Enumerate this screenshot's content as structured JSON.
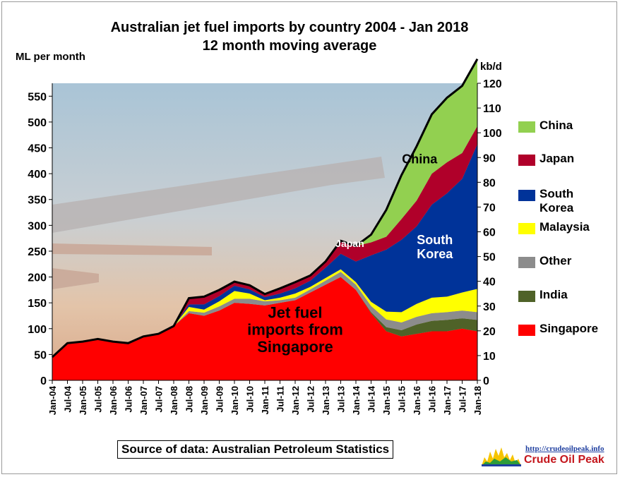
{
  "chart_data": {
    "type": "area",
    "stacked": true,
    "title": "Australian  jet fuel imports  by country  2004 - Jan 2018",
    "subtitle": "12 month  moving average",
    "ylabel": "ML per month",
    "ylabel_right": "kb/d",
    "ylim": [
      0,
      575
    ],
    "yticks": [
      0,
      50,
      100,
      150,
      200,
      250,
      300,
      350,
      400,
      450,
      500,
      550
    ],
    "ylim_right": [
      0,
      120
    ],
    "yticks_right": [
      0,
      10,
      20,
      30,
      40,
      50,
      60,
      70,
      80,
      90,
      100,
      110,
      120
    ],
    "x_tick_labels": [
      "Jan-04",
      "Jul-04",
      "Jan-05",
      "Jul-05",
      "Jan-06",
      "Jul-06",
      "Jan-07",
      "Jul-07",
      "Jan-08",
      "Jul-08",
      "Jan-09",
      "Jul-09",
      "Jan-10",
      "Jul-10",
      "Jan-11",
      "Jul-11",
      "Jan-12",
      "Jul-12",
      "Jan-13",
      "Jul-13",
      "Jan-14",
      "Jul-14",
      "Jan-15",
      "Jul-15",
      "Jan-16",
      "Jul-16",
      "Jan-17",
      "Jul-17",
      "Jan-18"
    ],
    "x": [
      2004.0,
      2004.5,
      2005.0,
      2005.5,
      2006.0,
      2006.5,
      2007.0,
      2007.5,
      2008.0,
      2008.5,
      2009.0,
      2009.5,
      2010.0,
      2010.5,
      2011.0,
      2011.5,
      2012.0,
      2012.5,
      2013.0,
      2013.5,
      2014.0,
      2014.5,
      2015.0,
      2015.5,
      2016.0,
      2016.5,
      2017.0,
      2017.5,
      2018.0
    ],
    "series": [
      {
        "name": "Singapore",
        "color": "#ff0000",
        "values": [
          45,
          72,
          75,
          80,
          75,
          72,
          85,
          90,
          105,
          130,
          125,
          135,
          150,
          148,
          145,
          150,
          155,
          170,
          185,
          200,
          175,
          130,
          95,
          85,
          90,
          95,
          95,
          100,
          95
        ]
      },
      {
        "name": "India",
        "color": "#4f6228",
        "values": [
          0,
          0,
          0,
          0,
          0,
          0,
          0,
          0,
          0,
          0,
          0,
          0,
          0,
          0,
          0,
          0,
          0,
          0,
          0,
          0,
          0,
          2,
          8,
          12,
          18,
          20,
          22,
          20,
          22
        ]
      },
      {
        "name": "Other",
        "color": "#8c8c8c",
        "values": [
          0,
          0,
          0,
          0,
          0,
          0,
          0,
          0,
          0,
          4,
          6,
          8,
          8,
          10,
          8,
          5,
          5,
          6,
          8,
          10,
          10,
          12,
          15,
          15,
          15,
          15,
          15,
          15,
          15
        ]
      },
      {
        "name": "Malaysia",
        "color": "#ffff00",
        "values": [
          0,
          0,
          0,
          0,
          0,
          0,
          0,
          0,
          0,
          8,
          6,
          10,
          15,
          10,
          2,
          5,
          8,
          5,
          5,
          5,
          5,
          8,
          15,
          20,
          25,
          30,
          30,
          35,
          45
        ]
      },
      {
        "name": "South\nKorea",
        "color": "#003399",
        "values": [
          0,
          0,
          0,
          0,
          0,
          0,
          0,
          0,
          0,
          5,
          10,
          10,
          10,
          8,
          6,
          8,
          10,
          12,
          20,
          30,
          40,
          90,
          120,
          140,
          150,
          180,
          200,
          220,
          280
        ]
      },
      {
        "name": "Japan",
        "color": "#b0002a",
        "values": [
          0,
          0,
          0,
          0,
          0,
          0,
          0,
          0,
          0,
          12,
          15,
          12,
          8,
          8,
          6,
          10,
          12,
          10,
          12,
          25,
          30,
          25,
          25,
          40,
          50,
          60,
          60,
          50,
          35
        ]
      },
      {
        "name": "China",
        "color": "#92d050",
        "values": [
          0,
          0,
          0,
          0,
          0,
          0,
          0,
          0,
          0,
          0,
          0,
          0,
          0,
          0,
          0,
          0,
          0,
          0,
          0,
          0,
          0,
          15,
          52,
          85,
          105,
          115,
          125,
          130,
          130
        ]
      }
    ],
    "annotations": [
      {
        "text": "China",
        "x": 2016.1,
        "y": 420,
        "color": "#000000"
      },
      {
        "text": "Japan",
        "x": 2013.8,
        "y": 258,
        "color": "#ffffff"
      },
      {
        "text": "South\nKorea",
        "x": 2016.6,
        "y": 250,
        "color": "#ffffff"
      },
      {
        "text": "Jet fuel\nimports from\nSingapore",
        "x": 2012.0,
        "y": 88,
        "color": "#000000"
      }
    ],
    "legend_position": "right"
  },
  "source": "Source of data: Australian Petroleum Statistics",
  "logo": {
    "url_text": "http://crudeoilpeak.info",
    "name": "Crude Oil Peak"
  }
}
